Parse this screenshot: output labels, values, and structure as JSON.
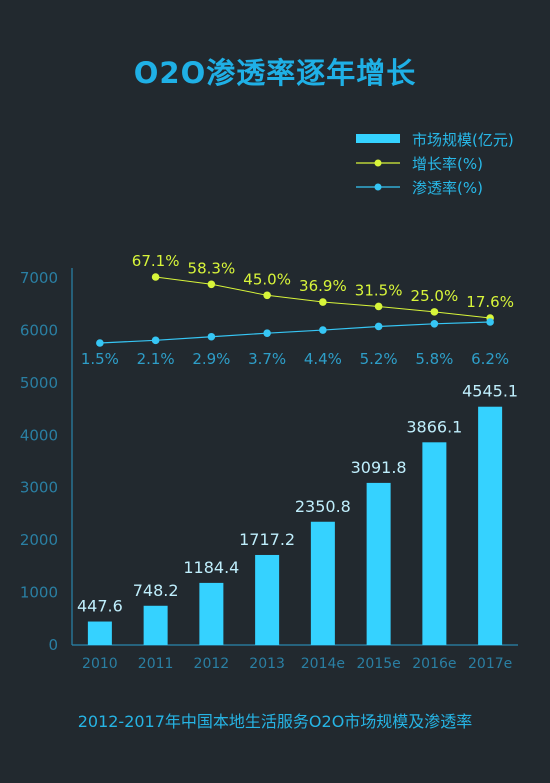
{
  "title": "O2O渗透率逐年增长",
  "footer": "2012-2017年中国本地生活服务O2O市场规模及渗透率",
  "colors": {
    "background": "#22292f",
    "bar": "#35d2ff",
    "growth": "#d8f53a",
    "penetration": "#36c6f5",
    "text": "#2ab4e2",
    "axis": "#2a86ad"
  },
  "chart_data": {
    "type": "bar",
    "categories": [
      "2010",
      "2011",
      "2012",
      "2013",
      "2014e",
      "2015e",
      "2016e",
      "2017e"
    ],
    "ylim": [
      0,
      7000
    ],
    "yticks": [
      "0",
      "1000",
      "2000",
      "3000",
      "4000",
      "5000",
      "6000",
      "7000"
    ],
    "series": [
      {
        "name": "市场规模(亿元)",
        "type": "bar",
        "values": [
          447.6,
          748.2,
          1184.4,
          1717.2,
          2350.8,
          3091.8,
          3866.1,
          4545.1
        ],
        "labels": [
          "447.6",
          "748.2",
          "1184.4",
          "1717.2",
          "2350.8",
          "3091.8",
          "3866.1",
          "4545.1"
        ]
      },
      {
        "name": "增长率(%)",
        "type": "line",
        "values": [
          null,
          67.1,
          58.3,
          45.0,
          36.9,
          31.5,
          25.0,
          17.6
        ],
        "labels": [
          "",
          "67.1%",
          "58.3%",
          "45.0%",
          "36.9%",
          "31.5%",
          "25.0%",
          "17.6%"
        ]
      },
      {
        "name": "渗透率(%)",
        "type": "line",
        "values": [
          1.5,
          2.1,
          2.9,
          3.7,
          4.4,
          5.2,
          5.8,
          6.2
        ],
        "labels": [
          "1.5%",
          "2.1%",
          "2.9%",
          "3.7%",
          "4.4%",
          "5.2%",
          "5.8%",
          "6.2%"
        ]
      }
    ],
    "legend_position": "top-right"
  }
}
